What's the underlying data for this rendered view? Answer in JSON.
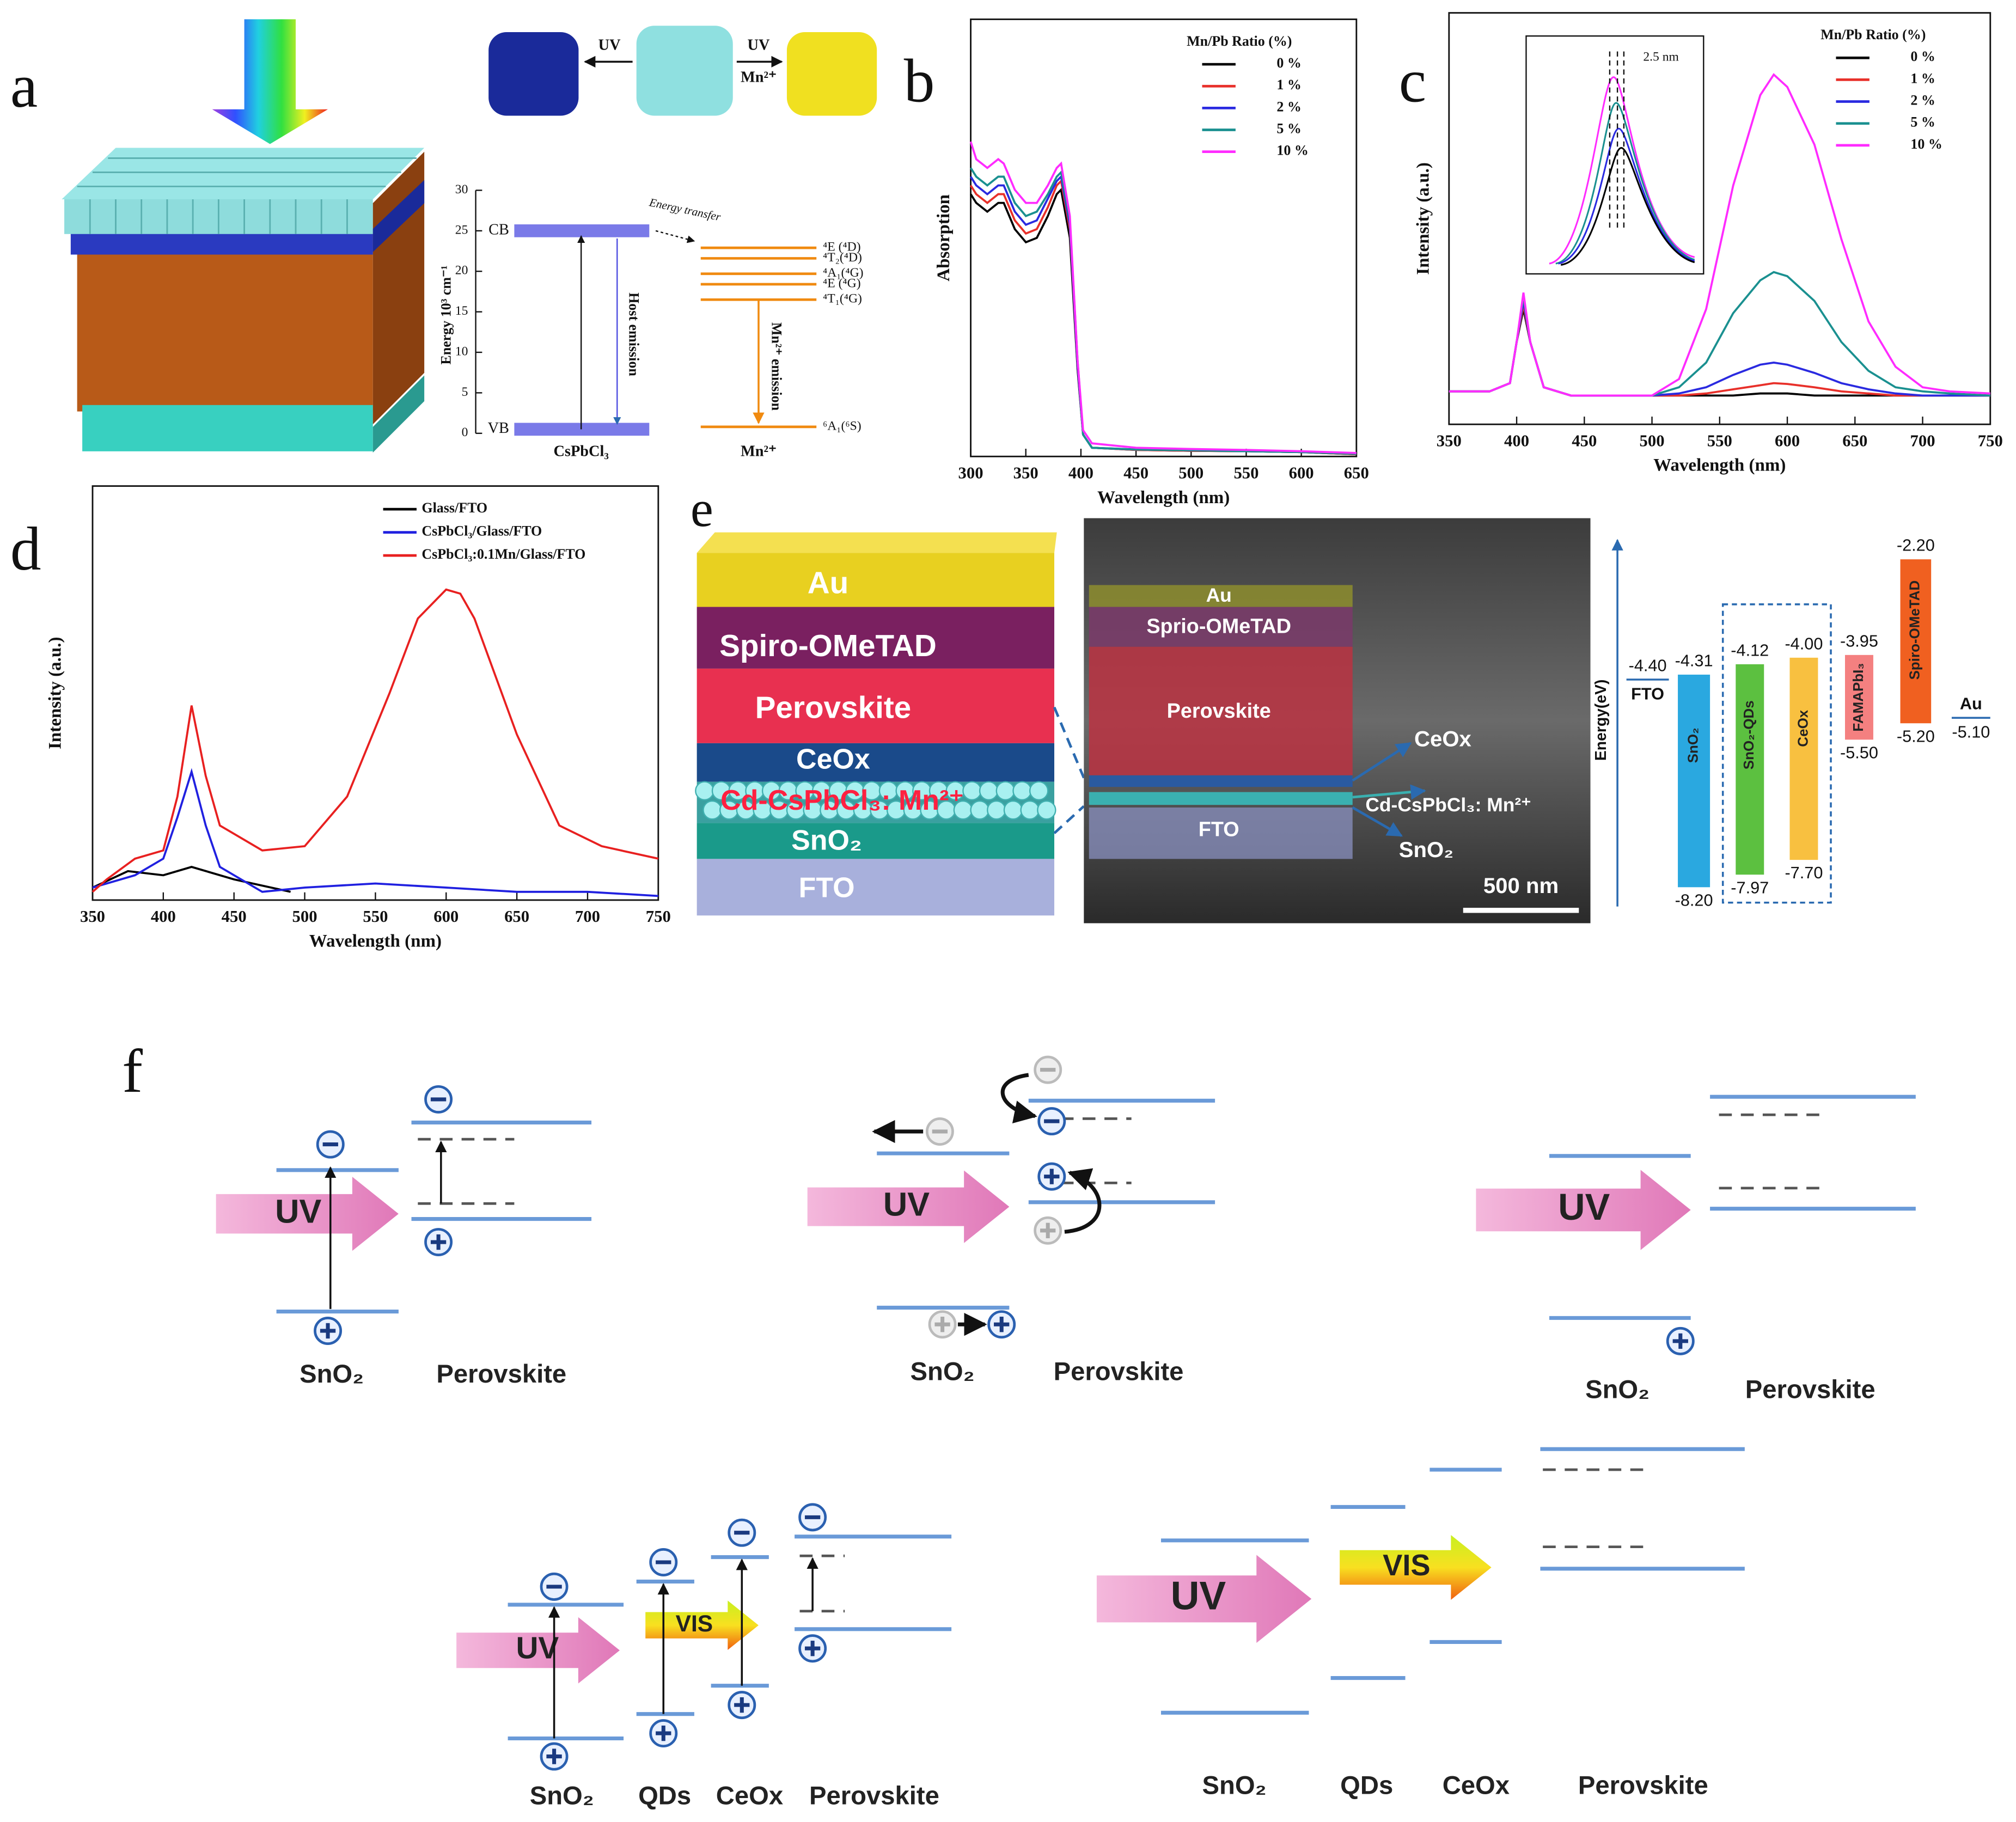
{
  "panel_labels": [
    "a",
    "b",
    "c",
    "d",
    "e",
    "f"
  ],
  "chart_data": [
    {
      "type": "line",
      "x_label": "Wavelength (nm)",
      "y_label": "Absorption",
      "legend_title": "Mn/Pb Ratio (%)",
      "legend": "upper right",
      "xlim": [
        300,
        650
      ],
      "xticks": [
        300,
        350,
        400,
        450,
        500,
        550,
        600,
        650
      ],
      "ylim": [
        0,
        1
      ],
      "x": [
        300,
        305,
        315,
        325,
        330,
        340,
        350,
        360,
        370,
        378,
        382,
        390,
        397,
        402,
        410,
        450,
        500,
        550,
        600,
        650
      ],
      "series": [
        {
          "name": "0 %",
          "color": "#000000",
          "values": [
            0.6,
            0.58,
            0.56,
            0.58,
            0.58,
            0.52,
            0.49,
            0.5,
            0.55,
            0.6,
            0.61,
            0.5,
            0.2,
            0.05,
            0.02,
            0.015,
            0.013,
            0.012,
            0.01,
            0.005
          ]
        },
        {
          "name": "1 %",
          "color": "#e8302a",
          "values": [
            0.62,
            0.6,
            0.58,
            0.6,
            0.6,
            0.54,
            0.51,
            0.52,
            0.57,
            0.62,
            0.63,
            0.52,
            0.21,
            0.05,
            0.02,
            0.015,
            0.013,
            0.012,
            0.01,
            0.005
          ]
        },
        {
          "name": "2 %",
          "color": "#2a2ae0",
          "values": [
            0.64,
            0.62,
            0.6,
            0.62,
            0.62,
            0.56,
            0.53,
            0.54,
            0.59,
            0.63,
            0.64,
            0.53,
            0.21,
            0.05,
            0.02,
            0.016,
            0.014,
            0.012,
            0.01,
            0.006
          ]
        },
        {
          "name": "5 %",
          "color": "#1a9090",
          "values": [
            0.66,
            0.64,
            0.62,
            0.64,
            0.64,
            0.58,
            0.55,
            0.56,
            0.6,
            0.64,
            0.65,
            0.54,
            0.22,
            0.05,
            0.02,
            0.016,
            0.014,
            0.012,
            0.01,
            0.006
          ]
        },
        {
          "name": "10 %",
          "color": "#ff2bff",
          "values": [
            0.72,
            0.68,
            0.66,
            0.68,
            0.67,
            0.61,
            0.58,
            0.58,
            0.62,
            0.66,
            0.67,
            0.55,
            0.22,
            0.06,
            0.03,
            0.02,
            0.017,
            0.015,
            0.012,
            0.008
          ]
        }
      ]
    },
    {
      "type": "line",
      "x_label": "Wavelength (nm)",
      "y_label": "Intensity (a.u.)",
      "legend_title": "Mn/Pb Ratio (%)",
      "legend": "upper right",
      "inset_annotation": "2.5 nm",
      "xlim": [
        350,
        750
      ],
      "xticks": [
        350,
        400,
        450,
        500,
        550,
        600,
        650,
        700,
        750
      ],
      "ylim": [
        0,
        1
      ],
      "x": [
        350,
        380,
        395,
        400,
        405,
        410,
        420,
        440,
        470,
        500,
        520,
        540,
        560,
        580,
        590,
        600,
        620,
        640,
        660,
        680,
        700,
        720,
        750
      ],
      "series": [
        {
          "name": "0 %",
          "color": "#000000",
          "values": [
            0.08,
            0.08,
            0.1,
            0.2,
            0.28,
            0.2,
            0.09,
            0.07,
            0.07,
            0.07,
            0.07,
            0.07,
            0.07,
            0.075,
            0.075,
            0.075,
            0.07,
            0.07,
            0.07,
            0.07,
            0.07,
            0.07,
            0.07
          ]
        },
        {
          "name": "1 %",
          "color": "#e8302a",
          "values": [
            0.08,
            0.08,
            0.1,
            0.2,
            0.29,
            0.2,
            0.09,
            0.07,
            0.07,
            0.07,
            0.07,
            0.075,
            0.085,
            0.095,
            0.1,
            0.098,
            0.09,
            0.08,
            0.075,
            0.07,
            0.07,
            0.07,
            0.07
          ]
        },
        {
          "name": "2 %",
          "color": "#2a2ae0",
          "values": [
            0.08,
            0.08,
            0.1,
            0.2,
            0.3,
            0.2,
            0.09,
            0.07,
            0.07,
            0.07,
            0.075,
            0.09,
            0.12,
            0.145,
            0.15,
            0.145,
            0.125,
            0.1,
            0.085,
            0.075,
            0.07,
            0.07,
            0.07
          ]
        },
        {
          "name": "5 %",
          "color": "#1a9090",
          "values": [
            0.08,
            0.08,
            0.1,
            0.2,
            0.31,
            0.2,
            0.09,
            0.07,
            0.07,
            0.07,
            0.09,
            0.15,
            0.27,
            0.35,
            0.37,
            0.36,
            0.3,
            0.2,
            0.13,
            0.09,
            0.08,
            0.075,
            0.07
          ]
        },
        {
          "name": "10 %",
          "color": "#ff2bff",
          "values": [
            0.08,
            0.08,
            0.1,
            0.2,
            0.32,
            0.2,
            0.09,
            0.07,
            0.07,
            0.07,
            0.11,
            0.28,
            0.58,
            0.8,
            0.85,
            0.82,
            0.68,
            0.45,
            0.25,
            0.14,
            0.09,
            0.08,
            0.075
          ]
        }
      ]
    },
    {
      "type": "line",
      "x_label": "Wavelength (nm)",
      "y_label": "Intensity (a.u.)",
      "legend": "upper center",
      "xlim": [
        350,
        750
      ],
      "xticks": [
        350,
        400,
        450,
        500,
        550,
        600,
        650,
        700,
        750
      ],
      "ylim": [
        0,
        1
      ],
      "series": [
        {
          "name": "Glass/FTO",
          "color": "#000000",
          "x": [
            350,
            375,
            400,
            420,
            450,
            490
          ],
          "values": [
            0.03,
            0.07,
            0.06,
            0.08,
            0.05,
            0.02
          ]
        },
        {
          "name": "CsPbCl₃/Glass/FTO",
          "color": "#2020e0",
          "x": [
            350,
            380,
            400,
            410,
            420,
            430,
            440,
            470,
            500,
            550,
            600,
            650,
            700,
            750
          ],
          "values": [
            0.03,
            0.06,
            0.1,
            0.2,
            0.31,
            0.18,
            0.08,
            0.02,
            0.03,
            0.04,
            0.03,
            0.02,
            0.02,
            0.01
          ]
        },
        {
          "name": "CsPbCl₃:0.1Mn/Glass/FTO",
          "color": "#e82020",
          "x": [
            350,
            360,
            380,
            400,
            410,
            420,
            430,
            440,
            470,
            500,
            530,
            560,
            580,
            600,
            610,
            620,
            650,
            680,
            710,
            750
          ],
          "values": [
            0.02,
            0.05,
            0.1,
            0.12,
            0.25,
            0.47,
            0.3,
            0.18,
            0.12,
            0.13,
            0.25,
            0.5,
            0.68,
            0.75,
            0.74,
            0.68,
            0.4,
            0.18,
            0.13,
            0.1
          ]
        }
      ]
    }
  ],
  "panel_a": {
    "cube_labels": [
      "UV",
      "UV",
      "Mn²⁺"
    ],
    "energy": {
      "y_label": "Energy 10³ cm⁻¹",
      "ylim": [
        0,
        30
      ],
      "yticks": [
        0,
        5,
        10,
        15,
        20,
        25,
        30
      ],
      "transfer": "Energy transfer",
      "host": {
        "name": "CsPbCl₃",
        "emission": "Host emission",
        "bands": [
          {
            "label": "CB",
            "value": 25
          },
          {
            "label": "VB",
            "value": 0.5
          }
        ]
      },
      "mn": {
        "name": "Mn²⁺",
        "emission": "Mn²⁺ emission",
        "levels": [
          {
            "label": "⁴E (⁴D)",
            "value": 22.9
          },
          {
            "label": "⁴T₂(⁴D)",
            "value": 21.6
          },
          {
            "label": "⁴A₁(⁴G)",
            "value": 19.7
          },
          {
            "label": "⁴E (⁴G)",
            "value": 18.4
          },
          {
            "label": "⁴T₁(⁴G)",
            "value": 16.5
          },
          {
            "label": "⁶A₁(⁶S)",
            "value": 0.8
          }
        ]
      }
    }
  },
  "panel_e": {
    "stack": [
      "Au",
      "Spiro-OMeTAD",
      "Perovskite",
      "CeOx",
      "Cd-CsPbCl₃: Mn²⁺",
      "SnO₂",
      "FTO"
    ],
    "sem": [
      "Au",
      "Sprio-OMeTAD",
      "Perovskite",
      "CeOx",
      "Cd-CsPbCl₃: Mn²⁺",
      "FTO",
      "SnO₂",
      "500 nm"
    ],
    "energy": {
      "y_label": "Energy(eV)",
      "bars": [
        {
          "name": "FTO",
          "values": [
            -4.4
          ],
          "value_labels": [
            "-4.40"
          ]
        },
        {
          "name": "SnO₂",
          "values": [
            -4.31,
            -8.2
          ],
          "value_labels": [
            "-4.31",
            "-8.20"
          ],
          "color": "#2aa8e0"
        },
        {
          "name": "SnO₂-QDs",
          "values": [
            -4.12,
            -7.97
          ],
          "value_labels": [
            "-4.12",
            "-7.97"
          ],
          "color": "#5cc040"
        },
        {
          "name": "CeOx",
          "values": [
            -4.0,
            -7.7
          ],
          "value_labels": [
            "-4.00",
            "-7.70"
          ],
          "color": "#f8c040"
        },
        {
          "name": "FAMAPbI₃",
          "values": [
            -3.95,
            -5.5
          ],
          "value_labels": [
            "-3.95",
            "-5.50"
          ],
          "color": "#f48080"
        },
        {
          "name": "Spiro-OMeTAD",
          "values": [
            -2.2,
            -5.2
          ],
          "value_labels": [
            "-2.20",
            "-5.20"
          ],
          "color": "#f06020"
        },
        {
          "name": "Au",
          "values": [
            -5.1
          ],
          "value_labels": [
            "-5.10"
          ]
        }
      ]
    }
  },
  "panel_f": {
    "diagrams": [
      {
        "arrows": [
          "UV"
        ],
        "labels": [
          "SnO₂",
          "Perovskite"
        ]
      },
      {
        "arrows": [
          "UV"
        ],
        "labels": [
          "SnO₂",
          "Perovskite"
        ]
      },
      {
        "arrows": [
          "UV"
        ],
        "labels": [
          "SnO₂",
          "Perovskite"
        ]
      },
      {
        "arrows": [
          "UV",
          "VIS"
        ],
        "labels": [
          "SnO₂",
          "QDs",
          "CeOx",
          "Perovskite"
        ]
      },
      {
        "arrows": [
          "UV",
          "VIS"
        ],
        "labels": [
          "SnO₂",
          "QDs",
          "CeOx",
          "Perovskite"
        ]
      }
    ]
  }
}
